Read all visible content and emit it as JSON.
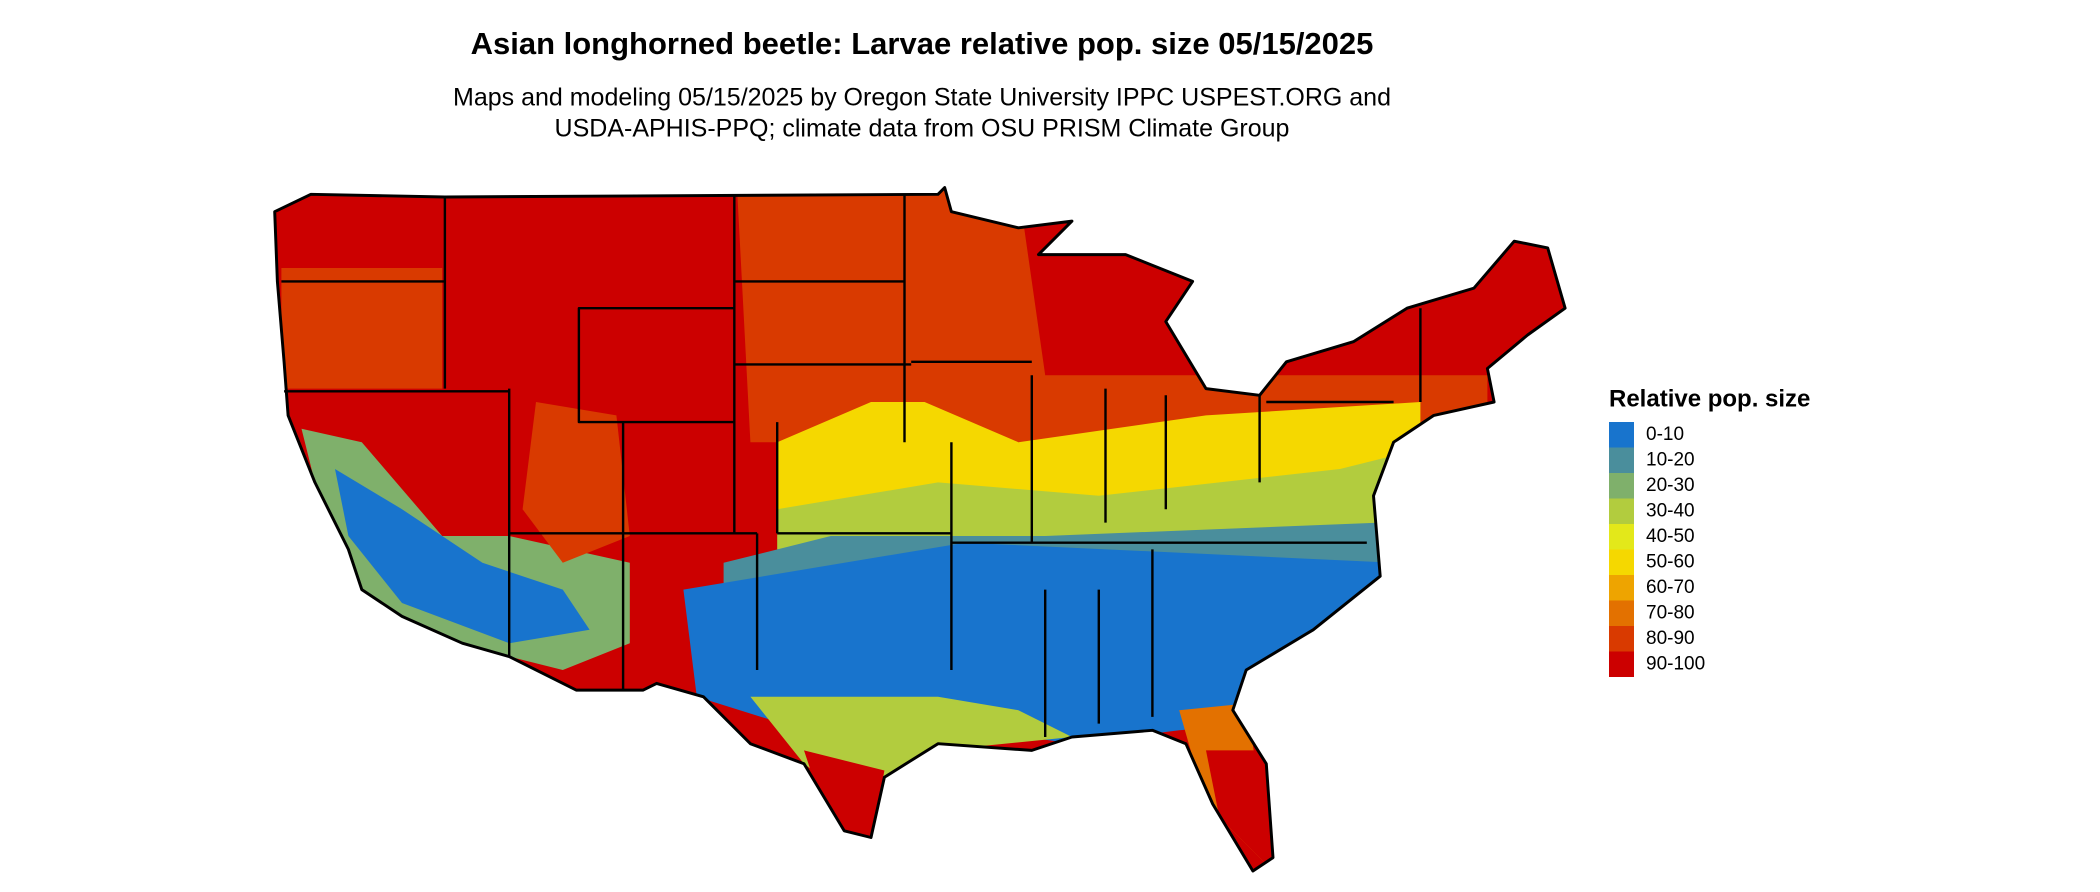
{
  "title": "Asian longhorned beetle: Larvae relative pop. size 05/15/2025",
  "subtitle": [
    "Maps and modeling 05/15/2025 by Oregon State University IPPC USPEST.ORG and",
    "USDA-APHIS-PPQ; climate data from OSU PRISM Climate Group"
  ],
  "legend": {
    "title": "Relative pop. size",
    "items": [
      {
        "label": "0-10",
        "color": "#1874cd"
      },
      {
        "label": "10-20",
        "color": "#4a8e9c"
      },
      {
        "label": "20-30",
        "color": "#7fb06b"
      },
      {
        "label": "30-40",
        "color": "#b2cc3e"
      },
      {
        "label": "40-50",
        "color": "#e3e81a"
      },
      {
        "label": "50-60",
        "color": "#f5d800"
      },
      {
        "label": "60-70",
        "color": "#eea400"
      },
      {
        "label": "70-80",
        "color": "#e37100"
      },
      {
        "label": "80-90",
        "color": "#d93a00"
      },
      {
        "label": "90-100",
        "color": "#cc0000"
      }
    ]
  }
}
